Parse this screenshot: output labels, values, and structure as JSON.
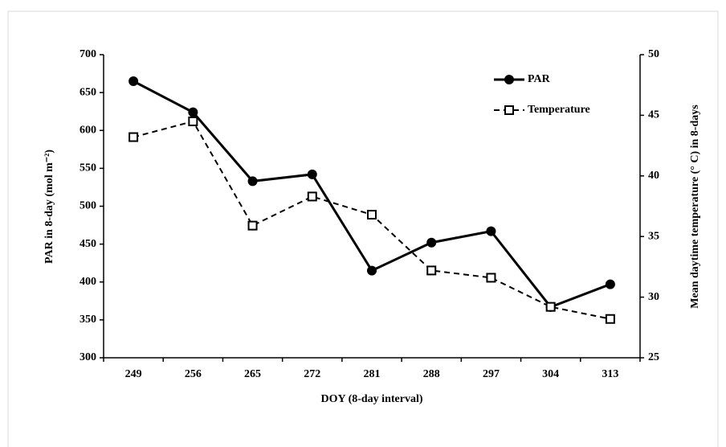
{
  "chart_data": {
    "type": "line",
    "categories": [
      "249",
      "256",
      "265",
      "272",
      "281",
      "288",
      "297",
      "304",
      "313"
    ],
    "xlabel": "DOY (8-day interval)",
    "ylabel": "PAR in 8-day (mol m⁻²)",
    "y2label": "Mean daytime temperature (° C) in 8-days",
    "ylim": [
      300,
      700
    ],
    "yticks": [
      300,
      350,
      400,
      450,
      500,
      550,
      600,
      650,
      700
    ],
    "y2lim": [
      25,
      50
    ],
    "y2ticks": [
      25,
      30,
      35,
      40,
      45,
      50
    ],
    "legend": "upper right",
    "series": [
      {
        "name": "PAR",
        "color": "#000000",
        "linestyle": "solid",
        "marker": "circle",
        "values": [
          665,
          624,
          533,
          542,
          415,
          452,
          467,
          367,
          397
        ]
      },
      {
        "name": "Temperature",
        "color": "#000000",
        "linestyle": "dashed",
        "marker": "square",
        "axis": "y2",
        "values": [
          43.2,
          44.5,
          35.9,
          38.3,
          36.8,
          32.2,
          31.6,
          29.2,
          28.2
        ]
      }
    ]
  }
}
